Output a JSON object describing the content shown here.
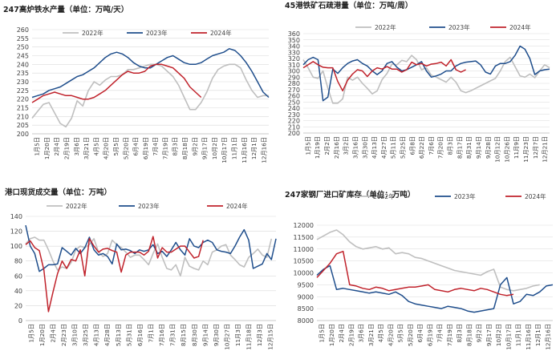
{
  "colors": {
    "s2022": "#bfbfbf",
    "s2023": "#1f4e8c",
    "s2024": "#c0222b"
  },
  "chart_data": [
    {
      "type": "line",
      "title": "247高炉铁水产量（单位：万吨/天）",
      "ylim": [
        200,
        260
      ],
      "yticks": [
        200,
        205,
        210,
        215,
        220,
        225,
        230,
        235,
        240,
        245,
        250,
        255,
        260
      ],
      "xticks": [
        "1月5日",
        "1月20日",
        "2月4日",
        "2月19日",
        "3月6日",
        "3月21日",
        "4月5日",
        "4月20日",
        "5月5日",
        "5月20日",
        "6月4日",
        "6月19日",
        "7月4日",
        "7月19日",
        "8月3日",
        "8月18日",
        "9月2日",
        "9月17日",
        "10月2日",
        "10月17日",
        "11月1日",
        "11月16日",
        "12月1日",
        "12月16日"
      ],
      "legend": [
        "2022年",
        "2023年",
        "2024年"
      ],
      "legend_position": "top",
      "series": [
        {
          "name": "2022年",
          "color": "s2022",
          "values": [
            209,
            213,
            217,
            218,
            212,
            206,
            204,
            209,
            219,
            216,
            225,
            230,
            228,
            231,
            233,
            233,
            234,
            237,
            237,
            238,
            239,
            240,
            240,
            239,
            236,
            233,
            228,
            221,
            214,
            214,
            218,
            224,
            232,
            237,
            239,
            240,
            240,
            238,
            231,
            225,
            221,
            222,
            222
          ]
        },
        {
          "name": "2023年",
          "color": "s2023",
          "values": [
            221,
            222,
            223,
            225,
            226,
            227,
            229,
            231,
            233,
            234,
            236,
            238,
            241,
            244,
            246,
            247,
            246,
            244,
            241,
            239,
            238,
            238,
            240,
            242,
            244,
            245,
            243,
            241,
            240,
            240,
            241,
            243,
            245,
            246,
            247,
            249,
            248,
            245,
            241,
            236,
            230,
            224,
            221
          ]
        },
        {
          "name": "2024年",
          "color": "s2024",
          "values": [
            218,
            220,
            222,
            223,
            224,
            223,
            222,
            222,
            221,
            220,
            220,
            221,
            223,
            225,
            228,
            231,
            234,
            236,
            235,
            235,
            236,
            239,
            240,
            240,
            239,
            238,
            235,
            232,
            227,
            224,
            221
          ]
        }
      ]
    },
    {
      "type": "line",
      "title": "45港铁矿石疏港量（单位：万吨/周）",
      "ylim": [
        200,
        360
      ],
      "yticks": [
        200,
        210,
        220,
        230,
        240,
        250,
        260,
        270,
        280,
        290,
        300,
        310,
        320,
        330,
        340,
        350,
        360
      ],
      "xticks": [
        "1月5日",
        "1月19日",
        "2月2日",
        "2月16日",
        "3月2日",
        "3月16日",
        "3月30日",
        "4月13日",
        "4月27日",
        "5月11日",
        "5月25日",
        "6月8日",
        "6月22日",
        "7月6日",
        "7月20日",
        "8月3日",
        "8月17日",
        "8月31日",
        "9月14日",
        "9月28日",
        "10月12日",
        "10月26日",
        "11月9日",
        "11月23日",
        "12月7日",
        "12月21日"
      ],
      "legend": [
        "2022年",
        "2023年",
        "2024年"
      ],
      "legend_position": "top",
      "series": [
        {
          "name": "2022年",
          "color": "s2022",
          "values": [
            318,
            305,
            290,
            288,
            300,
            272,
            248,
            248,
            255,
            290,
            285,
            290,
            280,
            272,
            263,
            268,
            286,
            296,
            311,
            310,
            317,
            315,
            325,
            318,
            302,
            305,
            293,
            290,
            286,
            282,
            290,
            282,
            268,
            265,
            268,
            272,
            276,
            280,
            284,
            288,
            300,
            315,
            322,
            307,
            292,
            290,
            295,
            289,
            300,
            310,
            305
          ]
        },
        {
          "name": "2023年",
          "color": "s2023",
          "values": [
            310,
            318,
            322,
            318,
            252,
            258,
            303,
            296,
            305,
            312,
            316,
            318,
            312,
            308,
            300,
            294,
            300,
            312,
            315,
            306,
            300,
            302,
            306,
            310,
            315,
            300,
            290,
            292,
            295,
            300,
            300,
            308,
            312,
            314,
            315,
            316,
            310,
            298,
            295,
            308,
            312,
            312,
            315,
            325,
            340,
            335,
            320,
            294,
            300,
            302,
            303
          ]
        },
        {
          "name": "2024年",
          "color": "s2024",
          "values": [
            305,
            310,
            315,
            310,
            306,
            305,
            305,
            283,
            268,
            285,
            295,
            302,
            300,
            291,
            300,
            305,
            303,
            307,
            303,
            303,
            298,
            302,
            314,
            310,
            312,
            308,
            311,
            312,
            314,
            308,
            318,
            302,
            298,
            302
          ]
        }
      ]
    },
    {
      "type": "line",
      "title": "港口现货成交量（单位：万吨）",
      "ylim": [
        0,
        140
      ],
      "yticks": [
        0,
        20,
        40,
        60,
        80,
        100,
        120,
        140
      ],
      "xticks": [
        "1月5日",
        "1月20日",
        "2月4日",
        "2月23日",
        "3月10日",
        "3月25日",
        "4月13日",
        "4月28日",
        "5月13日",
        "5月31日",
        "6月16日",
        "7月1日",
        "7月16日",
        "7月31日",
        "8月15日",
        "8月30日",
        "9月14日",
        "9月30日",
        "10月27日",
        "11月3日",
        "11月18日",
        "12月3日",
        "12月15日"
      ],
      "legend": [
        "2022年",
        "2023年",
        "2024年"
      ],
      "legend_position": "top",
      "series": [
        {
          "name": "2022年",
          "color": "s2022",
          "values": [
            103,
            110,
            112,
            108,
            108,
            95,
            80,
            68,
            72,
            70,
            78,
            95,
            100,
            98,
            102,
            110,
            92,
            86,
            90,
            108,
            102,
            98,
            92,
            85,
            88,
            88,
            82,
            75,
            90,
            103,
            85,
            70,
            68,
            75,
            60,
            85,
            73,
            70,
            68,
            80,
            75,
            92,
            95,
            100,
            102,
            88,
            82,
            75,
            72,
            85,
            90,
            96,
            88,
            85,
            110
          ]
        },
        {
          "name": "2023年",
          "color": "s2023",
          "values": [
            128,
            100,
            90,
            66,
            70,
            75,
            75,
            76,
            98,
            93,
            88,
            97,
            90,
            98,
            112,
            95,
            88,
            90,
            86,
            76,
            103,
            95,
            96,
            94,
            90,
            95,
            93,
            95,
            102,
            90,
            93,
            86,
            95,
            105,
            95,
            88,
            110,
            100,
            98,
            105,
            108,
            105,
            95,
            93,
            92,
            90,
            100,
            112,
            122,
            108,
            70,
            73,
            76,
            90,
            82,
            110
          ]
        },
        {
          "name": "2024年",
          "color": "s2024",
          "values": [
            102,
            107,
            98,
            94,
            68,
            12,
            38,
            63,
            80,
            70,
            82,
            80,
            95,
            60,
            110,
            100,
            92,
            96,
            97,
            94,
            92,
            65,
            88,
            92,
            92,
            92,
            88,
            93,
            113,
            84,
            98,
            92,
            92,
            96,
            100,
            100,
            92,
            84,
            86,
            108
          ]
        }
      ]
    },
    {
      "type": "line",
      "title": "247家钢厂进口矿库存（单位：万吨）",
      "ylim": [
        8000,
        12000
      ],
      "yticks": [
        8000,
        8500,
        9000,
        9500,
        10000,
        10500,
        11000,
        11500,
        12000
      ],
      "xticks": [
        "1月5日",
        "1月20日",
        "2月4日",
        "2月19日",
        "3月6日",
        "3月21日",
        "4月5日",
        "4月20日",
        "5月5日",
        "5月20日",
        "6月4日",
        "6月19日",
        "7月4日",
        "7月19日",
        "8月3日",
        "8月18日",
        "9月2日",
        "9月17日",
        "10月2日",
        "10月17日",
        "11月1日",
        "11月16日",
        "12月1日",
        "12月16日"
      ],
      "legend": [
        "2022年",
        "2023年",
        "2024年"
      ],
      "legend_position": "top",
      "series": [
        {
          "name": "2022年",
          "color": "s2022",
          "values": [
            11400,
            11550,
            11700,
            11800,
            11600,
            11300,
            11100,
            11000,
            11050,
            11100,
            11000,
            11050,
            10800,
            10850,
            10800,
            10650,
            10600,
            10500,
            10400,
            10300,
            10200,
            10100,
            10050,
            10000,
            9950,
            9900,
            10050,
            10150,
            9400,
            9300,
            9250,
            9300,
            9350,
            9450,
            9500
          ]
        },
        {
          "name": "2023年",
          "color": "s2023",
          "values": [
            9900,
            10150,
            10300,
            9300,
            9350,
            9300,
            9250,
            9200,
            9150,
            9200,
            9150,
            9100,
            9200,
            9050,
            8800,
            8700,
            8650,
            8600,
            8550,
            8500,
            8600,
            8550,
            8500,
            8400,
            8350,
            8400,
            8450,
            8500,
            9500,
            9800,
            8700,
            8800,
            9100,
            9050,
            9200,
            9450,
            9500
          ]
        },
        {
          "name": "2024年",
          "color": "s2024",
          "values": [
            9800,
            10100,
            10400,
            10800,
            10900,
            9500,
            9450,
            9350,
            9300,
            9400,
            9350,
            9250,
            9300,
            9350,
            9400,
            9400,
            9450,
            9500,
            9300,
            9250,
            9200,
            9300,
            9350,
            9300,
            9250,
            9350,
            9300,
            9200,
            9100,
            9050,
            9100
          ]
        }
      ]
    }
  ]
}
